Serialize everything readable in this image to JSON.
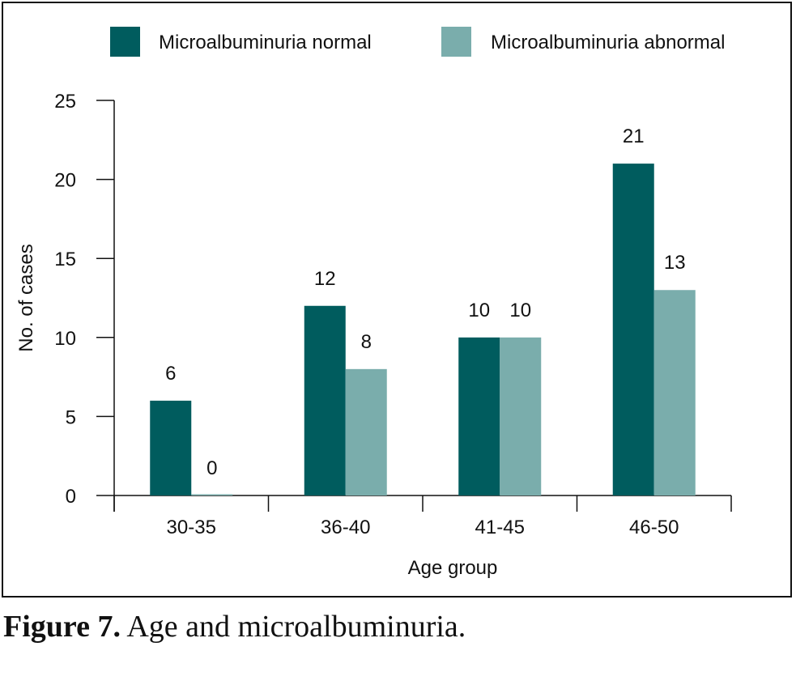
{
  "caption": {
    "label": "Figure 7.",
    "text": "Age and microalbuminuria."
  },
  "chart_data": {
    "type": "bar",
    "title": "",
    "xlabel": "Age group",
    "ylabel": "No. of cases",
    "categories": [
      "30-35",
      "36-40",
      "41-45",
      "46-50"
    ],
    "series": [
      {
        "name": "Microalbuminuria normal",
        "values": [
          6,
          12,
          10,
          21
        ],
        "color": "#005c5e"
      },
      {
        "name": "Microalbuminuria abnormal",
        "values": [
          0,
          8,
          10,
          13
        ],
        "color": "#7aadac"
      }
    ],
    "ylim": [
      0,
      25
    ],
    "yticks": [
      0,
      5,
      10,
      15,
      20,
      25
    ],
    "grid": false,
    "legend_position": "top"
  }
}
